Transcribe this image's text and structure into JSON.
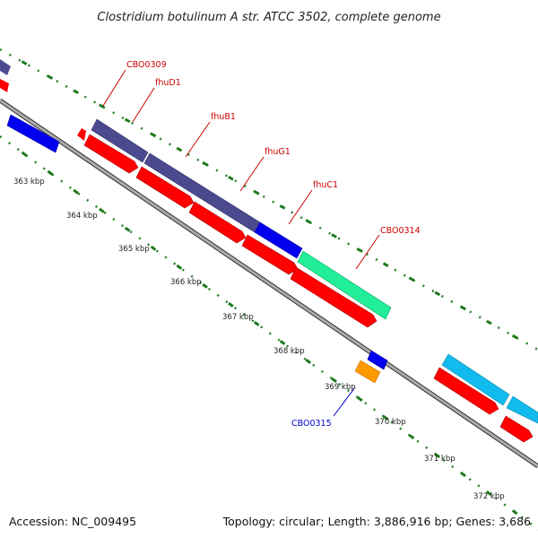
{
  "title": "Clostridium botulinum A str. ATCC 3502, complete genome",
  "footer": {
    "accession": "Accession: NC_009495",
    "summary": "Topology: circular; Length: 3,886,916 bp; Genes: 3,686"
  },
  "ticks": [
    "363 kbp",
    "364 kbp",
    "365 kbp",
    "366 kbp",
    "367 kbp",
    "368 kbp",
    "369 kbp",
    "370 kbp",
    "371 kbp",
    "372 kbp"
  ],
  "gene_labels": [
    "CBO0309",
    "fhuD1",
    "fhuB1",
    "fhuG1",
    "fhuC1",
    "CBO0314",
    "CBO0315"
  ],
  "colors": {
    "forward_cds": "#4b4a8f",
    "reverse_cds": "#ff0000",
    "blue_cds": "#0000ee",
    "green_cds": "#22ee99",
    "cyan_cds": "#11bbee",
    "orange_cds": "#ff9900",
    "backbone": "#888888",
    "tick_green": "#1e7a1e",
    "label_red": "#cc0000",
    "label_blue": "#0000cc"
  }
}
